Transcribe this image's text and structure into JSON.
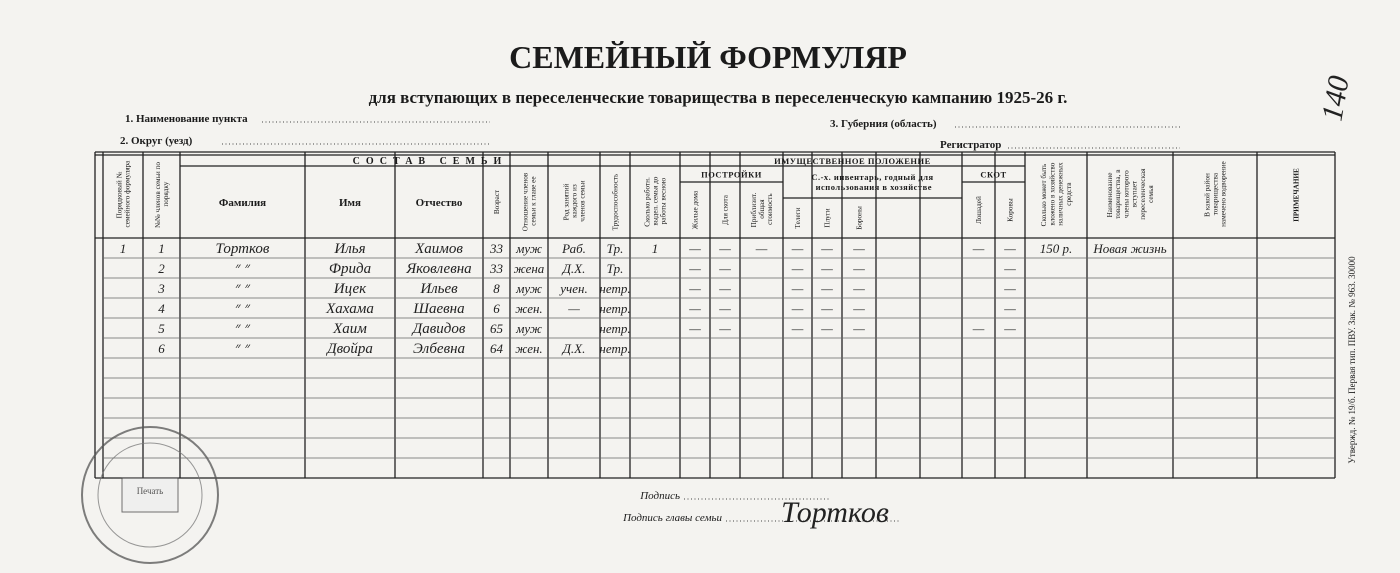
{
  "header": {
    "title": "СЕМЕЙНЫЙ ФОРМУЛЯР",
    "subtitle": "для вступающих в переселенческие товарищества в переселенческую кампанию 1925-26 г.",
    "number": "140"
  },
  "fields": [
    "1. Наименование пункта",
    "2. Округ (уезд)",
    "3. Губерния (область)",
    "Регистратор"
  ],
  "table": {
    "groups": [
      "СОСТАВ СЕМЬИ",
      "ИМУЩЕСТВЕННОЕ ПОЛОЖЕНИЕ",
      "ПОСТРОЙКИ",
      "С.-х. инвентарь, годный для использования в хозяйстве",
      "СКОТ"
    ],
    "columns": [
      "Порядковый № семейного формуляра",
      "№№ членов семьи по порядку",
      "Фамилия",
      "Имя",
      "Отчество",
      "Возраст",
      "Отношение членов семьи к главе ее",
      "Род занятий каждого из членов семьи",
      "Трудоспособность",
      "Сколько работн. выдел. семья до работы весною",
      "Жилые дома",
      "Для скота",
      "Приблизит. общая стоимость",
      "Телеги",
      "Плуги",
      "Бороны",
      null,
      null,
      "Лошадей",
      "Коровы",
      "Сколько может быть вложено в хозяйство наличных денежных средств",
      "Наименование товарищества, в члены которого вступает переселенческая семья",
      "В какой район товарищества намечено водворение",
      "ПРИМЕЧАНИЕ"
    ],
    "rows": [
      [
        "1",
        "1",
        "Тортков",
        "Илья",
        "Хаимов",
        "33",
        "муж",
        "Раб.",
        "Тр.",
        "1",
        "—",
        "—",
        "—",
        "—",
        "—",
        "—",
        null,
        null,
        "—",
        "—",
        "150 р.",
        "Новая жизнь",
        null,
        null
      ],
      [
        null,
        "2",
        "״ ״",
        "Фрида",
        "Яковлевна",
        "33",
        "жена",
        "Д.Х.",
        "Тр.",
        null,
        "—",
        "—",
        null,
        "—",
        "—",
        "—",
        null,
        null,
        null,
        "—",
        null,
        null,
        null,
        null
      ],
      [
        null,
        "3",
        "״ ״",
        "Ицек",
        "Ильев",
        "8",
        "муж",
        "учен.",
        "нетр.",
        null,
        "—",
        "—",
        null,
        "—",
        "—",
        "—",
        null,
        null,
        null,
        "—",
        null,
        null,
        null,
        null
      ],
      [
        null,
        "4",
        "״ ״",
        "Хахама",
        "Шаевна",
        "6",
        "жен.",
        "—",
        "нетр.",
        null,
        "—",
        "—",
        null,
        "—",
        "—",
        "—",
        null,
        null,
        null,
        "—",
        null,
        null,
        null,
        null
      ],
      [
        null,
        "5",
        "״ ״",
        "Хаим",
        "Давидов",
        "65",
        "муж",
        null,
        "нетр.",
        null,
        "—",
        "—",
        null,
        "—",
        "—",
        "—",
        null,
        null,
        "—",
        "—",
        null,
        null,
        null,
        null
      ],
      [
        null,
        "6",
        "״ ״",
        "Двойра",
        "Элбевна",
        "64",
        "жен.",
        "Д.Х.",
        "нетр.",
        null,
        null,
        null,
        null,
        null,
        null,
        null,
        null,
        null,
        null,
        null,
        null,
        null,
        null,
        null
      ]
    ]
  },
  "side_note": "Утвержд. № 19/б. Первая тип. ПВУ. Зак. № 963. 30000",
  "footer": {
    "signature_label": "Подпись",
    "head_signature_label": "Подпись главы семьи",
    "head_signature": "Тортков"
  },
  "stamp": "Печать"
}
